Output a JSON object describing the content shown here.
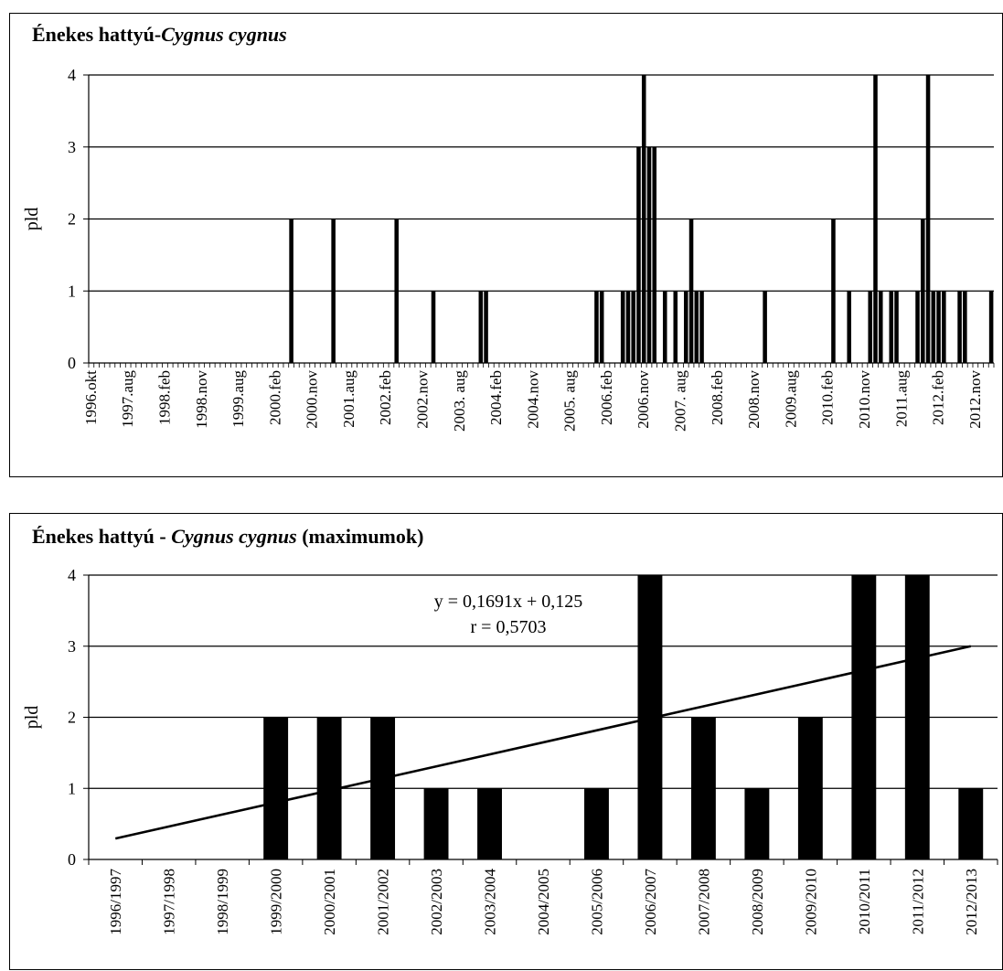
{
  "charts": [
    {
      "title_main": "Énekes hattyú-",
      "title_species": "Cygnus  cygnus"
    },
    {
      "title_main": "Énekes hattyú - ",
      "title_species": "Cygnus cygnus",
      "title_suffix": " (maximumok)"
    }
  ],
  "chart_data": [
    {
      "type": "bar",
      "title": "Énekes hattyú-Cygnus  cygnus",
      "ylabel": "pld",
      "xlabel": "",
      "ylim": [
        0,
        4
      ],
      "yticks": [
        0,
        1,
        2,
        3,
        4
      ],
      "grid": true,
      "tick_labels": [
        "1996.okt",
        "1997.aug",
        "1998.feb",
        "1998.nov",
        "1999.aug",
        "2000.feb",
        "2000.nov",
        "2001.aug",
        "2002.feb",
        "2002.nov",
        "2003. aug",
        "2004.feb",
        "2004.nov",
        "2005. aug",
        "2006.feb",
        "2006.nov",
        "2007. aug",
        "2008.feb",
        "2008.nov",
        "2009.aug",
        "2010.feb",
        "2010.nov",
        "2011.aug",
        "2012.feb",
        "2012.nov"
      ],
      "periods": 172,
      "label_every": 7,
      "bars": [
        {
          "i": 38,
          "v": 2
        },
        {
          "i": 46,
          "v": 2
        },
        {
          "i": 58,
          "v": 2
        },
        {
          "i": 65,
          "v": 1
        },
        {
          "i": 74,
          "v": 1
        },
        {
          "i": 75,
          "v": 1
        },
        {
          "i": 96,
          "v": 1
        },
        {
          "i": 97,
          "v": 1
        },
        {
          "i": 101,
          "v": 1
        },
        {
          "i": 102,
          "v": 1
        },
        {
          "i": 103,
          "v": 1
        },
        {
          "i": 104,
          "v": 3
        },
        {
          "i": 105,
          "v": 4
        },
        {
          "i": 106,
          "v": 3
        },
        {
          "i": 107,
          "v": 3
        },
        {
          "i": 109,
          "v": 1
        },
        {
          "i": 111,
          "v": 1
        },
        {
          "i": 113,
          "v": 1
        },
        {
          "i": 114,
          "v": 2
        },
        {
          "i": 115,
          "v": 1
        },
        {
          "i": 116,
          "v": 1
        },
        {
          "i": 128,
          "v": 1
        },
        {
          "i": 141,
          "v": 2
        },
        {
          "i": 144,
          "v": 1
        },
        {
          "i": 148,
          "v": 1
        },
        {
          "i": 149,
          "v": 4
        },
        {
          "i": 150,
          "v": 1
        },
        {
          "i": 152,
          "v": 1
        },
        {
          "i": 153,
          "v": 1
        },
        {
          "i": 157,
          "v": 1
        },
        {
          "i": 158,
          "v": 2
        },
        {
          "i": 159,
          "v": 4
        },
        {
          "i": 160,
          "v": 1
        },
        {
          "i": 161,
          "v": 1
        },
        {
          "i": 162,
          "v": 1
        },
        {
          "i": 165,
          "v": 1
        },
        {
          "i": 166,
          "v": 1
        },
        {
          "i": 171,
          "v": 1
        }
      ]
    },
    {
      "type": "bar",
      "title": "Énekes hattyú - Cygnus cygnus (maximumok)",
      "ylabel": "pld",
      "xlabel": "",
      "ylim": [
        0,
        4
      ],
      "yticks": [
        0,
        1,
        2,
        3,
        4
      ],
      "grid": true,
      "categories": [
        "1996/1997",
        "1997/1998",
        "1998/1999",
        "1999/2000",
        "2000/2001",
        "2001/2002",
        "2002/2003",
        "2003/2004",
        "2004/2005",
        "2005/2006",
        "2006/2007",
        "2007/2008",
        "2008/2009",
        "2009/2010",
        "2010/2011",
        "2011/2012",
        "2012/2013"
      ],
      "values": [
        0,
        0,
        0,
        2,
        2,
        2,
        1,
        1,
        0,
        1,
        4,
        2,
        1,
        2,
        4,
        4,
        1
      ],
      "trendline": {
        "type": "linear",
        "slope": 0.1691,
        "intercept": 0.125,
        "equation_label": "y = 0,1691x   + 0,125",
        "r_label": "r = 0,5703"
      }
    }
  ]
}
